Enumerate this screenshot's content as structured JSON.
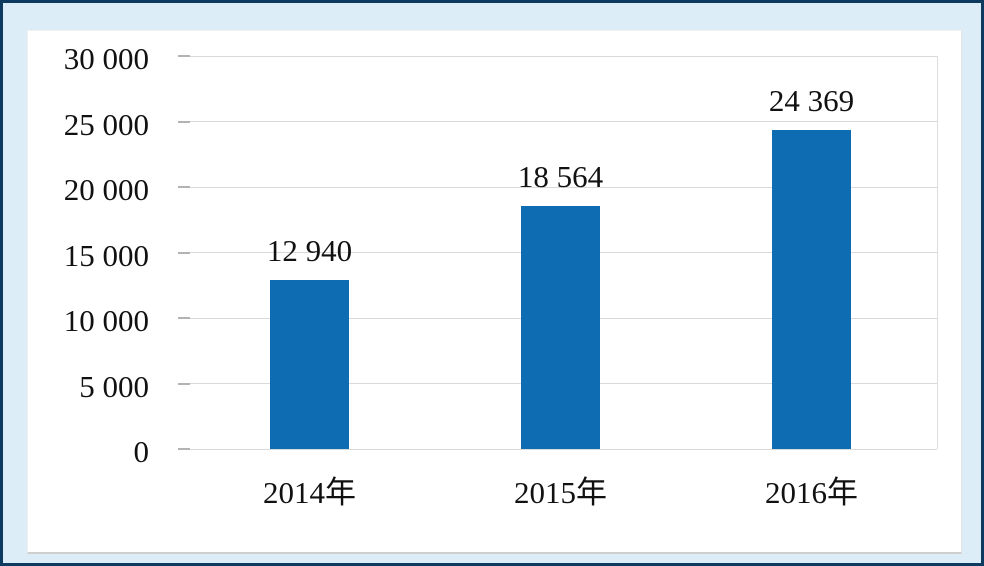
{
  "frame": {
    "background_color": "#dcedf8",
    "border_color": "#0f3a5f",
    "chart_background": "#ffffff"
  },
  "chart_data": {
    "type": "bar",
    "title": "",
    "xlabel": "",
    "ylabel": "",
    "categories": [
      "2014年",
      "2015年",
      "2016年"
    ],
    "values": [
      12940,
      18564,
      24369
    ],
    "data_labels": [
      "12 940",
      "18 564",
      "24 369"
    ],
    "y_tick_labels": [
      "0",
      "5 000",
      "10 000",
      "15 000",
      "20 000",
      "25 000",
      "30 000"
    ],
    "ylim": [
      0,
      30000
    ],
    "y_step": 5000,
    "grid": true,
    "legend": false,
    "bar_color": "#0d6cb2",
    "gridline_color": "#d9d9d9",
    "text_color": "#111111"
  }
}
